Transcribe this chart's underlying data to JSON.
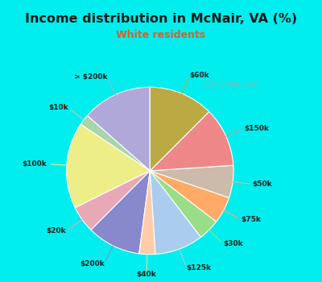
{
  "title": "Income distribution in McNair, VA (%)",
  "subtitle": "White residents",
  "title_color": "#1a1a1a",
  "subtitle_color": "#cc6633",
  "bg_color": "#00eeee",
  "box_color": "#e8f5e8",
  "labels": [
    "> $200k",
    "$10k",
    "$100k",
    "$20k",
    "$200k",
    "$40k",
    "$125k",
    "$30k",
    "$75k",
    "$50k",
    "$150k",
    "$60k"
  ],
  "values": [
    13,
    2,
    16,
    5,
    10,
    3,
    9,
    4,
    5,
    6,
    11,
    12
  ],
  "colors": [
    "#b0a8d8",
    "#aad4aa",
    "#eeee88",
    "#e8a8b8",
    "#8888cc",
    "#ffccaa",
    "#aaccee",
    "#99dd88",
    "#ffaa66",
    "#ccbbaa",
    "#ee8888",
    "#bbaa44"
  ],
  "startangle": 90,
  "watermark": "City-Data.com"
}
